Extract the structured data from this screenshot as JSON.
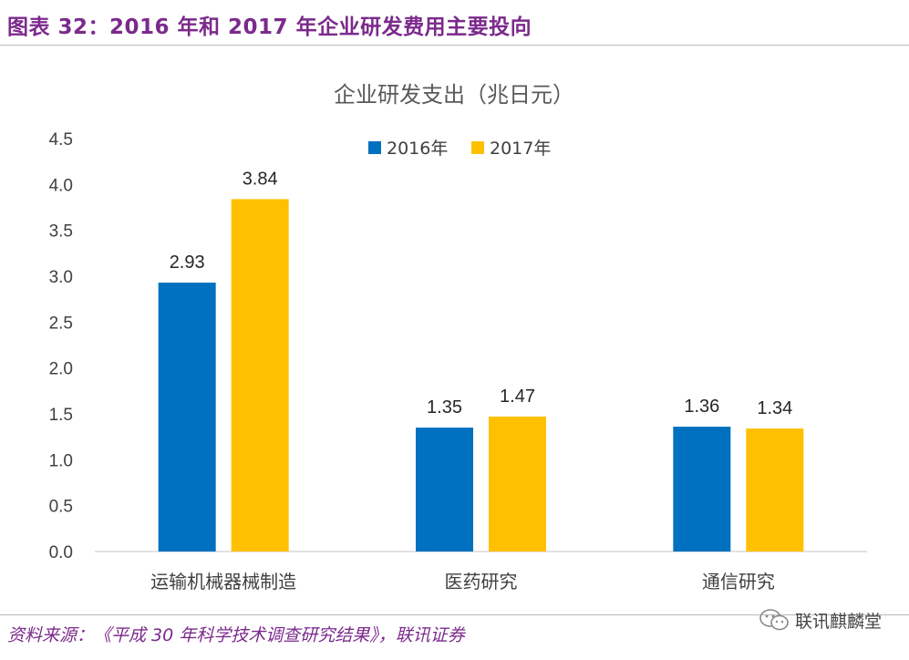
{
  "figure": {
    "title": "图表 32：2016 年和 2017 年企业研发费用主要投向",
    "source": "资料来源：《平成 30 年科学技术调查研究结果》，联讯证券",
    "watermark": "联讯麒麟堂"
  },
  "colors": {
    "series_2016": "#0070c0",
    "series_2017": "#ffc000"
  },
  "chart_data": {
    "type": "bar",
    "title": "企业研发支出（兆日元）",
    "categories": [
      "运输机械器械制造",
      "医药研究",
      "通信研究"
    ],
    "series": [
      {
        "name": "2016年",
        "values": [
          2.93,
          1.35,
          1.36
        ]
      },
      {
        "name": "2017年",
        "values": [
          3.84,
          1.47,
          1.34
        ]
      }
    ],
    "ylim": [
      0,
      4.5
    ],
    "yticks": [
      "0.0",
      "0.5",
      "1.0",
      "1.5",
      "2.0",
      "2.5",
      "3.0",
      "3.5",
      "4.0",
      "4.5"
    ],
    "xlabel": "",
    "ylabel": "",
    "legend_position": "top-center",
    "grid": false
  }
}
